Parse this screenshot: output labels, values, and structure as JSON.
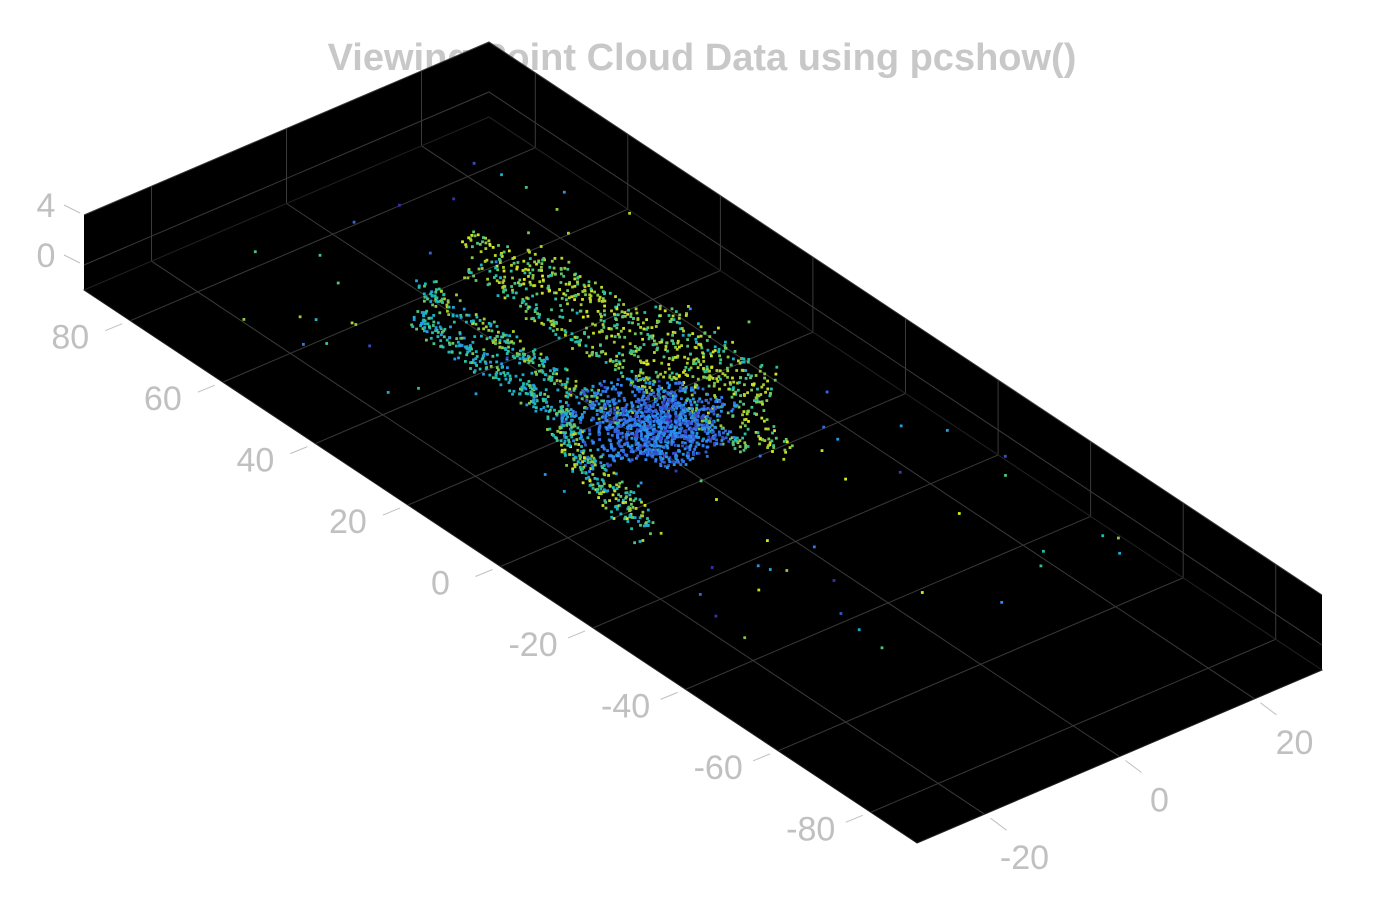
{
  "chart_data": {
    "type": "scatter",
    "title": "Viewing Point Cloud Data using pcshow()",
    "xlabel": "",
    "ylabel": "",
    "zlabel": "",
    "x_ticks": [
      "-80",
      "-60",
      "-40",
      "-20",
      "0",
      "20",
      "40",
      "60",
      "80"
    ],
    "y_ticks": [
      "-20",
      "0",
      "20"
    ],
    "z_ticks": [
      "0",
      "4"
    ],
    "xlim": [
      -90,
      90
    ],
    "ylim": [
      -30,
      30
    ],
    "zlim": [
      -2,
      4
    ],
    "grid": true,
    "background": "#000000",
    "colormap": "parula",
    "colors": {
      "title": "#c8c8c8",
      "tick_label": "#c0c0c0",
      "grid": "#3a3a3a",
      "page": "#ffffff",
      "parula_low": "#3e26a8",
      "parula_mid": "#13beb7",
      "parula_high": "#f9fb0e"
    },
    "note": "",
    "clusters": [
      {
        "name": "",
        "x_range": [
          -20,
          60
        ],
        "y_range": [
          -8,
          8
        ],
        "z": 0.5
      },
      {
        "name": "",
        "x_range": [
          -10,
          15
        ],
        "y_range": [
          -12,
          12
        ],
        "z": -1
      }
    ]
  }
}
